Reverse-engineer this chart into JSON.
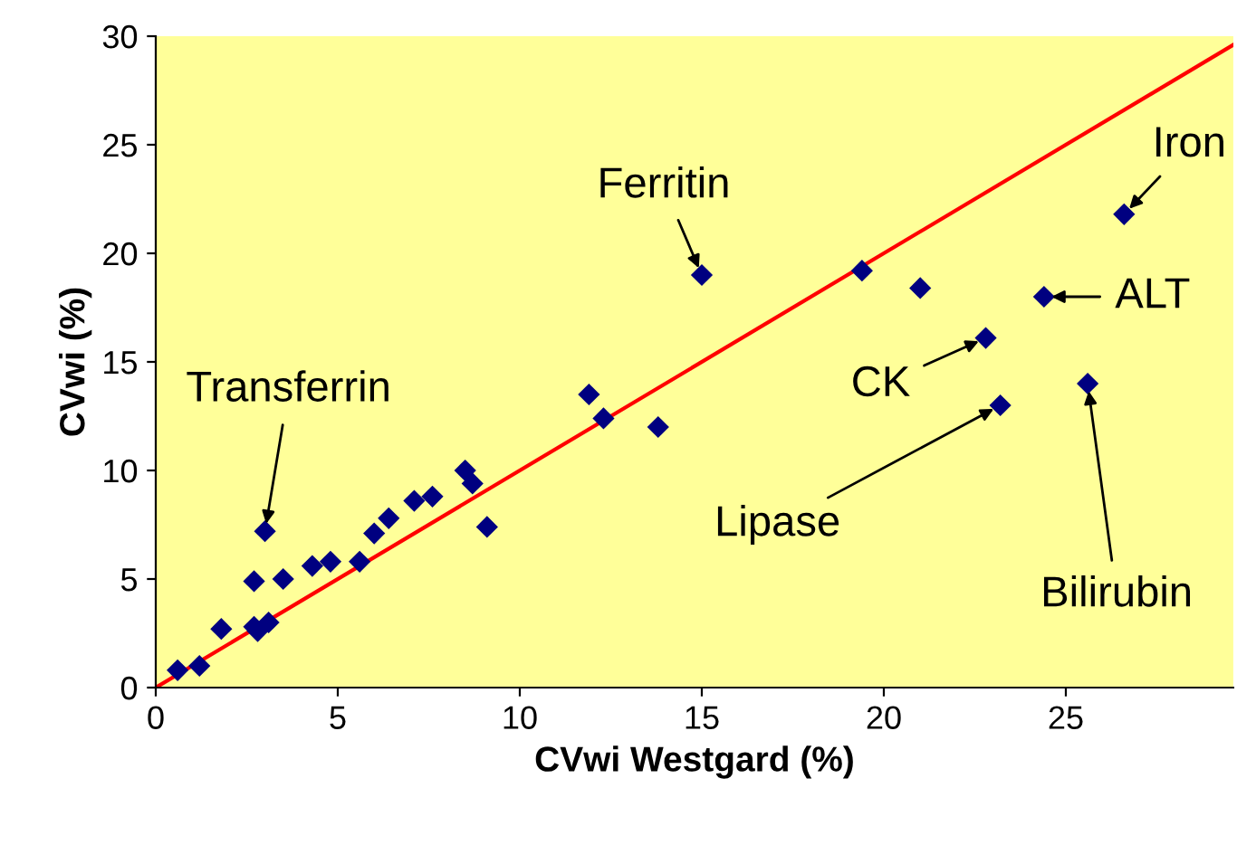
{
  "chart_data": {
    "type": "scatter",
    "xlabel": "CVwi Westgard (%)",
    "ylabel": "CVwi (%)",
    "xlim": [
      0,
      29.6
    ],
    "ylim": [
      0,
      30
    ],
    "xticks": [
      0,
      5,
      10,
      15,
      20,
      25
    ],
    "yticks": [
      0,
      5,
      10,
      15,
      20,
      25,
      30
    ],
    "grid": false,
    "series": [
      {
        "color": "#000080",
        "marker": "diamond",
        "x": [
          0.6,
          1.2,
          1.8,
          2.7,
          3.0,
          2.7,
          2.8,
          3.1,
          3.5,
          4.3,
          4.8,
          5.6,
          6.0,
          6.4,
          7.1,
          7.6,
          8.5,
          8.7,
          9.1,
          11.9,
          12.3,
          13.8,
          15.0,
          19.4,
          21.0,
          22.8,
          23.2,
          24.4,
          25.6,
          26.6
        ],
        "values": [
          0.8,
          1.0,
          2.7,
          4.9,
          7.2,
          2.8,
          2.6,
          3.0,
          5.0,
          5.6,
          5.8,
          5.8,
          7.1,
          7.8,
          8.6,
          8.8,
          10.0,
          9.4,
          7.4,
          13.5,
          12.4,
          12.0,
          19.0,
          19.2,
          18.4,
          16.1,
          13.0,
          18.0,
          14.0,
          21.8
        ]
      },
      {
        "type": "line",
        "color": "#ff0000",
        "x": [
          0,
          29.6
        ],
        "values": [
          0,
          29.6
        ]
      }
    ],
    "annotations": [
      {
        "text": "Transferrin",
        "x": 3.0,
        "y": 7.2
      },
      {
        "text": "Ferritin",
        "x": 15.0,
        "y": 19.0
      },
      {
        "text": "Iron",
        "x": 26.6,
        "y": 21.8
      },
      {
        "text": "ALT",
        "x": 24.4,
        "y": 18.0
      },
      {
        "text": "CK",
        "x": 22.8,
        "y": 16.1
      },
      {
        "text": "Lipase",
        "x": 23.2,
        "y": 13.0
      },
      {
        "text": "Bilirubin",
        "x": 25.6,
        "y": 14.0
      }
    ]
  }
}
